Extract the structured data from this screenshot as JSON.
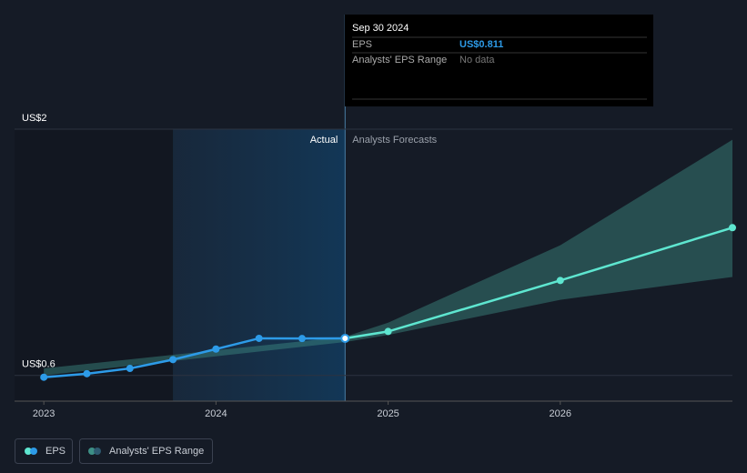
{
  "chart_data": {
    "type": "line",
    "xlim": [
      2022.83,
      2027
    ],
    "xticks": [
      2023,
      2024,
      2025,
      2026
    ],
    "ylim": [
      0.454,
      2
    ],
    "yticks": [
      {
        "value": 2,
        "label": "US$2"
      },
      {
        "value": 0.6,
        "label": "US$0.6"
      }
    ],
    "actual_label": "Actual",
    "forecast_label": "Analysts Forecasts",
    "series": [
      {
        "name": "EPS",
        "color": "#2d9be8",
        "x": [
          2023,
          2023.25,
          2023.5,
          2023.75,
          2024,
          2024.25,
          2024.5,
          2024.75
        ],
        "values": [
          0.59,
          0.61,
          0.64,
          0.69,
          0.75,
          0.811,
          0.81,
          0.811
        ]
      }
    ],
    "forecast": {
      "color": "#5ee6d0",
      "x": [
        2024.75,
        2025,
        2026,
        2027
      ],
      "values": [
        0.811,
        0.85,
        1.14,
        1.44
      ]
    },
    "range": {
      "name": "Analysts' EPS Range",
      "color": "#3d8f86",
      "x": [
        2023,
        2024.75,
        2025,
        2026,
        2027
      ],
      "low": [
        0.6,
        0.79,
        0.83,
        1.03,
        1.16
      ],
      "high": [
        0.64,
        0.82,
        0.9,
        1.34,
        1.94
      ]
    },
    "tooltip": {
      "date": "Sep 30 2024",
      "rows": [
        {
          "label": "EPS",
          "value": "US$0.811"
        },
        {
          "label": "Analysts' EPS Range",
          "value": "No data"
        }
      ]
    }
  }
}
